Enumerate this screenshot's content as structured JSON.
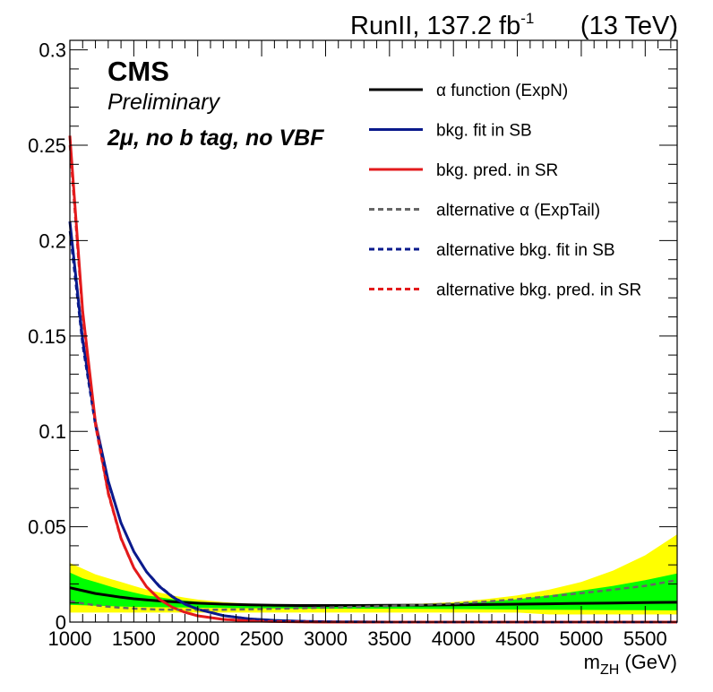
{
  "header": {
    "lumi_label": "RunII, 137.2 fb",
    "lumi_sup": "-1",
    "energy_label": "(13 TeV)"
  },
  "annotations": {
    "experiment": "CMS",
    "status": "Preliminary",
    "category_mu": "2μ",
    "category_rest": ", no b tag, no VBF"
  },
  "chart_data": {
    "type": "line",
    "xlabel_main": "m",
    "xlabel_sub": "ZH",
    "xlabel_unit": "(GeV)",
    "ylabel": "",
    "xlim": [
      1000,
      5750
    ],
    "ylim": [
      0,
      0.305
    ],
    "x_ticks": [
      1000,
      1500,
      2000,
      2500,
      3000,
      3500,
      4000,
      4500,
      5000,
      5500
    ],
    "x_tick_labels": [
      "1000",
      "1500",
      "2000",
      "2500",
      "3000",
      "3500",
      "4000",
      "4500",
      "5000",
      "5500"
    ],
    "y_ticks": [
      0,
      0.05,
      0.1,
      0.15,
      0.2,
      0.25,
      0.3
    ],
    "y_tick_labels": [
      "0",
      "0.05",
      "0.1",
      "0.15",
      "0.2",
      "0.25",
      "0.3"
    ],
    "x": [
      1000,
      1100,
      1200,
      1300,
      1400,
      1500,
      1600,
      1700,
      1800,
      1900,
      2000,
      2200,
      2400,
      2600,
      2800,
      3000,
      3250,
      3500,
      3750,
      4000,
      4250,
      4500,
      4750,
      5000,
      5250,
      5500,
      5750
    ],
    "bands": [
      {
        "name": "yellow-2sigma",
        "color": "#ffff00",
        "low": [
          0.005,
          0.005,
          0.005,
          0.005,
          0.005,
          0.005,
          0.005,
          0.005,
          0.005,
          0.005,
          0.005,
          0.005,
          0.005,
          0.005,
          0.005,
          0.005,
          0.005,
          0.005,
          0.005,
          0.005,
          0.005,
          0.005,
          0.004,
          0.004,
          0.004,
          0.004,
          0.004
        ],
        "high": [
          0.031,
          0.028,
          0.025,
          0.023,
          0.021,
          0.019,
          0.017,
          0.0155,
          0.014,
          0.0128,
          0.0118,
          0.0105,
          0.0097,
          0.0092,
          0.009,
          0.0089,
          0.009,
          0.0092,
          0.0097,
          0.0105,
          0.012,
          0.014,
          0.017,
          0.021,
          0.027,
          0.035,
          0.046
        ]
      },
      {
        "name": "green-1sigma",
        "color": "#00ff00",
        "low": [
          0.009,
          0.0088,
          0.0086,
          0.0084,
          0.0082,
          0.008,
          0.0079,
          0.0078,
          0.0077,
          0.0076,
          0.0075,
          0.0074,
          0.0073,
          0.0072,
          0.0071,
          0.007,
          0.007,
          0.007,
          0.0069,
          0.0068,
          0.0067,
          0.0066,
          0.0065,
          0.0064,
          0.0063,
          0.0062,
          0.0061
        ],
        "high": [
          0.026,
          0.023,
          0.021,
          0.019,
          0.017,
          0.0155,
          0.014,
          0.013,
          0.012,
          0.0113,
          0.0107,
          0.0098,
          0.0093,
          0.009,
          0.0088,
          0.0087,
          0.0088,
          0.009,
          0.0093,
          0.0098,
          0.0107,
          0.012,
          0.014,
          0.0165,
          0.019,
          0.022,
          0.0255
        ]
      }
    ],
    "series": [
      {
        "name": "α function (ExpN)",
        "color": "#000000",
        "dash": false,
        "values": [
          0.018,
          0.0165,
          0.015,
          0.014,
          0.013,
          0.0122,
          0.0116,
          0.0111,
          0.0107,
          0.0103,
          0.0099,
          0.0094,
          0.009,
          0.0088,
          0.0087,
          0.0087,
          0.0087,
          0.0088,
          0.0089,
          0.009,
          0.0092,
          0.0094,
          0.0096,
          0.0098,
          0.01,
          0.0102,
          0.0104
        ]
      },
      {
        "name": "bkg. fit in SB",
        "color": "#0a1a8c",
        "dash": false,
        "values": [
          0.21,
          0.148,
          0.105,
          0.074,
          0.052,
          0.037,
          0.0263,
          0.0187,
          0.0133,
          0.0094,
          0.0067,
          0.0034,
          0.0017,
          0.0009,
          0.0004,
          0.0002,
          0.0001,
          0.0,
          0.0,
          0.0,
          0.0,
          0.0,
          0.0,
          0.0,
          0.0,
          0.0,
          0.0
        ]
      },
      {
        "name": "bkg. pred. in SR",
        "color": "#e31a1c",
        "dash": false,
        "values": [
          0.255,
          0.163,
          0.105,
          0.068,
          0.044,
          0.0285,
          0.0185,
          0.012,
          0.0078,
          0.0051,
          0.0033,
          0.0014,
          0.0006,
          0.0003,
          0.0001,
          0.0,
          0.0,
          0.0,
          0.0,
          0.0,
          0.0,
          0.0,
          0.0,
          0.0,
          0.0,
          0.0,
          0.0
        ]
      },
      {
        "name": "alternative α (ExpTail)",
        "color": "#666666",
        "dash": true,
        "values": [
          0.011,
          0.0098,
          0.0088,
          0.0081,
          0.0075,
          0.0071,
          0.0068,
          0.0066,
          0.0065,
          0.0064,
          0.0064,
          0.0065,
          0.0067,
          0.007,
          0.0073,
          0.0076,
          0.008,
          0.0085,
          0.009,
          0.0097,
          0.0107,
          0.012,
          0.0135,
          0.0152,
          0.017,
          0.019,
          0.022
        ]
      },
      {
        "name": "alternative bkg. fit in SB",
        "color": "#0a1a8c",
        "dash": true,
        "values": [
          0.205,
          0.145,
          0.103,
          0.073,
          0.052,
          0.037,
          0.0265,
          0.019,
          0.0136,
          0.0097,
          0.0069,
          0.0035,
          0.0018,
          0.0009,
          0.0005,
          0.0002,
          0.0001,
          0.0,
          0.0,
          0.0,
          0.0,
          0.0,
          0.0,
          0.0,
          0.0,
          0.0,
          0.0
        ]
      },
      {
        "name": "alternative bkg. pred. in SR",
        "color": "#e31a1c",
        "dash": true,
        "values": [
          0.25,
          0.16,
          0.103,
          0.067,
          0.0435,
          0.0283,
          0.0184,
          0.012,
          0.0078,
          0.0051,
          0.0033,
          0.0014,
          0.0006,
          0.0003,
          0.0001,
          0.0,
          0.0,
          0.0,
          0.0,
          0.0,
          0.0,
          0.0,
          0.0,
          0.0,
          0.0,
          0.0,
          0.0
        ]
      }
    ],
    "legend": [
      {
        "label": "α function (ExpN)",
        "color": "#000000",
        "dash": false
      },
      {
        "label": "bkg. fit in SB",
        "color": "#0a1a8c",
        "dash": false
      },
      {
        "label": "bkg. pred. in SR",
        "color": "#e31a1c",
        "dash": false
      },
      {
        "label": "alternative α (ExpTail)",
        "color": "#666666",
        "dash": true
      },
      {
        "label": "alternative bkg. fit in SB",
        "color": "#0a1a8c",
        "dash": true
      },
      {
        "label": "alternative bkg. pred. in SR",
        "color": "#e31a1c",
        "dash": true
      }
    ],
    "legend_position": "top-right",
    "grid": false
  }
}
